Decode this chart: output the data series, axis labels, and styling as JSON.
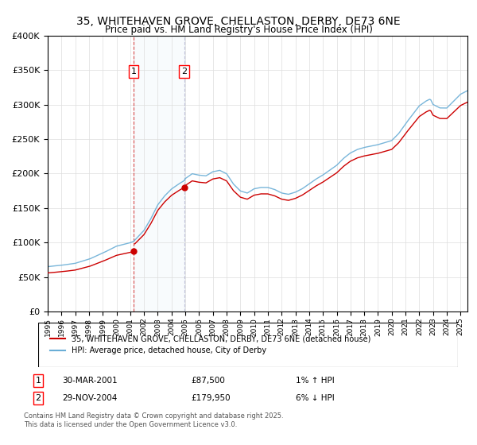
{
  "title": "35, WHITEHAVEN GROVE, CHELLASTON, DERBY, DE73 6NE",
  "subtitle": "Price paid vs. HM Land Registry's House Price Index (HPI)",
  "legend_line1": "35, WHITEHAVEN GROVE, CHELLASTON, DERBY, DE73 6NE (detached house)",
  "legend_line2": "HPI: Average price, detached house, City of Derby",
  "annotation1_label": "1",
  "annotation1_date": "30-MAR-2001",
  "annotation1_price": "£87,500",
  "annotation1_hpi": "1% ↑ HPI",
  "annotation2_label": "2",
  "annotation2_date": "29-NOV-2004",
  "annotation2_price": "£179,950",
  "annotation2_hpi": "6% ↓ HPI",
  "footer": "Contains HM Land Registry data © Crown copyright and database right 2025.\nThis data is licensed under the Open Government Licence v3.0.",
  "hpi_color": "#6aaed6",
  "price_color": "#cc0000",
  "purchase1_x": 2001.25,
  "purchase1_y": 87500,
  "purchase2_x": 2004.92,
  "purchase2_y": 179950,
  "ylim": [
    0,
    400000
  ],
  "xlim_start": 1995.0,
  "xlim_end": 2025.5
}
